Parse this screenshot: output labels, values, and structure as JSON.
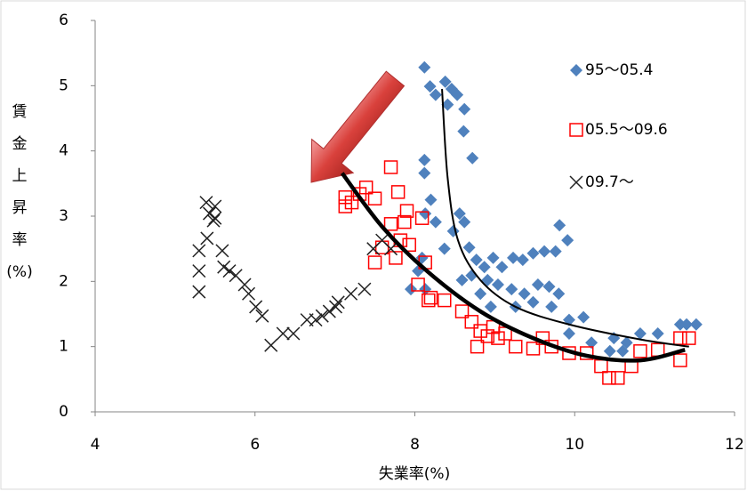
{
  "chart_data": {
    "type": "scatter",
    "x_label": "失業率(%)",
    "y_label": "賃金上昇率(%)",
    "xlim": [
      4,
      12
    ],
    "xticks": [
      4,
      6,
      8,
      10,
      12
    ],
    "ylim": [
      0,
      6
    ],
    "yticks": [
      0,
      1,
      2,
      3,
      4,
      5,
      6
    ],
    "grid": false,
    "legend": "top-right",
    "series": [
      {
        "name": "95〜05.4",
        "color": "#4f81bd",
        "marker": "diamond",
        "x": [
          8.12,
          8.19,
          8.26,
          8.38,
          8.46,
          8.53,
          8.62,
          8.41,
          8.61,
          8.72,
          8.12,
          8.12,
          8.2,
          8.13,
          8.26,
          8.56,
          8.62,
          8.48,
          8.68,
          8.77,
          8.87,
          8.98,
          9.09,
          9.23,
          9.35,
          9.48,
          9.62,
          9.76,
          9.81,
          9.91,
          8.09,
          8.04,
          7.95,
          8.13,
          8.59,
          8.82,
          8.95,
          9.04,
          9.21,
          9.37,
          9.54,
          9.68,
          9.8,
          9.71,
          9.48,
          9.26,
          9.93,
          10.11,
          9.93,
          10.21,
          10.44,
          10.6,
          10.82,
          11.04,
          11.32,
          11.52,
          11.4,
          10.49,
          10.65,
          8.71,
          8.91,
          8.37
        ],
        "values": [
          5.28,
          4.99,
          4.86,
          5.06,
          4.95,
          4.86,
          4.64,
          4.71,
          4.3,
          3.89,
          3.86,
          3.66,
          3.25,
          3.04,
          2.91,
          3.04,
          2.91,
          2.77,
          2.52,
          2.33,
          2.22,
          2.36,
          2.22,
          2.36,
          2.33,
          2.43,
          2.46,
          2.46,
          2.86,
          2.63,
          2.36,
          2.16,
          1.88,
          1.88,
          2.02,
          1.81,
          1.61,
          1.95,
          1.88,
          1.81,
          1.95,
          1.92,
          1.81,
          1.61,
          1.68,
          1.61,
          1.41,
          1.45,
          1.2,
          1.06,
          0.93,
          0.93,
          1.2,
          1.2,
          1.34,
          1.34,
          1.34,
          1.13,
          1.06,
          2.09,
          2.02,
          2.5
        ]
      },
      {
        "name": "05.5〜09.6",
        "color": "#ff0000",
        "marker": "square",
        "x": [
          7.13,
          7.13,
          7.21,
          7.31,
          7.39,
          7.5,
          7.7,
          7.79,
          7.9,
          7.87,
          7.7,
          8.09,
          7.82,
          7.93,
          7.59,
          7.5,
          7.76,
          8.13,
          8.04,
          8.2,
          8.37,
          8.17,
          8.59,
          8.71,
          8.82,
          8.91,
          9.04,
          8.98,
          8.78,
          9.26,
          9.48,
          9.71,
          9.93,
          10.15,
          10.33,
          10.43,
          10.54,
          10.71,
          10.82,
          11.04,
          11.32,
          11.32,
          11.43,
          9.6,
          9.13
        ],
        "values": [
          3.29,
          3.15,
          3.21,
          3.34,
          3.44,
          3.27,
          3.75,
          3.37,
          3.08,
          2.91,
          2.88,
          2.97,
          2.63,
          2.56,
          2.52,
          2.29,
          2.36,
          2.29,
          1.95,
          1.75,
          1.71,
          1.71,
          1.54,
          1.38,
          1.24,
          1.16,
          1.13,
          1.3,
          1.0,
          1.0,
          0.97,
          1.0,
          0.9,
          0.9,
          0.7,
          0.52,
          0.52,
          0.7,
          0.93,
          0.95,
          0.79,
          1.13,
          1.13,
          1.13,
          1.2
        ]
      },
      {
        "name": "09.7〜",
        "color": "#222222",
        "marker": "x",
        "x": [
          5.3,
          5.3,
          5.3,
          5.39,
          5.43,
          5.48,
          5.4,
          5.5,
          5.5,
          5.59,
          5.61,
          5.68,
          5.76,
          5.87,
          5.92,
          6.01,
          6.09,
          6.2,
          6.35,
          6.48,
          6.65,
          6.76,
          6.84,
          6.93,
          7.01,
          7.04,
          7.2,
          7.37,
          7.48,
          7.7,
          7.59
        ],
        "values": [
          1.84,
          2.16,
          2.47,
          3.21,
          3.04,
          2.93,
          2.66,
          3.15,
          2.97,
          2.47,
          2.22,
          2.16,
          2.09,
          1.95,
          1.81,
          1.61,
          1.47,
          1.02,
          1.2,
          1.2,
          1.41,
          1.41,
          1.47,
          1.54,
          1.61,
          1.68,
          1.81,
          1.88,
          2.5,
          2.5,
          2.63
        ]
      }
    ],
    "curves": [
      {
        "color": "#000000",
        "x": [
          8.34,
          8.41,
          8.54,
          8.82,
          9.26,
          9.93,
          10.82,
          11.43
        ],
        "values": [
          4.95,
          3.59,
          2.63,
          2.02,
          1.61,
          1.34,
          1.11,
          1.0
        ]
      },
      {
        "color": "#000000",
        "x": [
          7.09,
          7.59,
          8.15,
          8.82,
          9.48,
          10.15,
          10.82,
          11.38
        ],
        "values": [
          3.66,
          2.84,
          2.16,
          1.54,
          1.13,
          0.86,
          0.79,
          0.95
        ]
      }
    ]
  }
}
